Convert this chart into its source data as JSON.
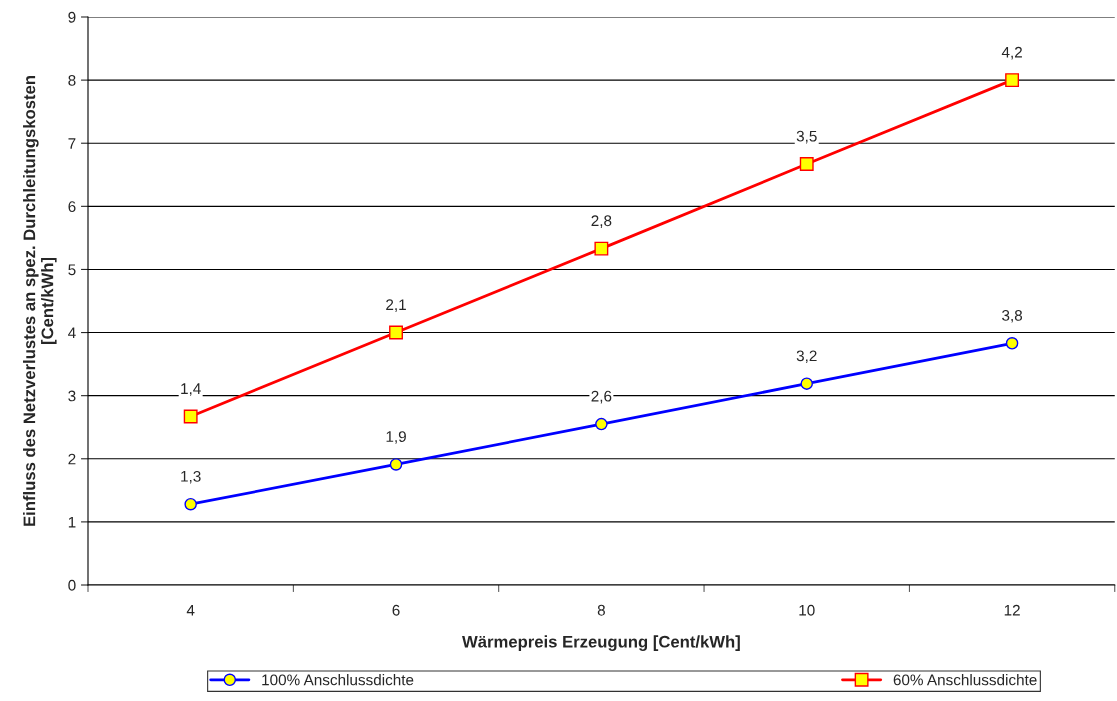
{
  "chart_data": {
    "type": "line",
    "xlabel": "Wärmepreis Erzeugung [Cent/kWh]",
    "ylabel": "Einfluss des Netzverlustes an spez. Durchleitungskosten\n[Cent/kWh]",
    "categories": [
      "4",
      "6",
      "8",
      "10",
      "12"
    ],
    "series": [
      {
        "name": "100% Anschlussdichte",
        "color": "#0000ff",
        "marker": "circle",
        "values": [
          1.28,
          1.91,
          2.55,
          3.19,
          3.83
        ],
        "value_labels": [
          "1,3",
          "1,9",
          "2,6",
          "3,2",
          "3,8"
        ]
      },
      {
        "name": "60% Anschlussdichte",
        "color": "#ff0000",
        "marker": "square",
        "values": [
          2.67,
          4.0,
          5.33,
          6.67,
          8.0
        ]
      }
    ],
    "annotations": [
      {
        "text": "1,4",
        "x": "4",
        "y": 2.67
      },
      {
        "text": "2,1",
        "x": "6",
        "y": 4.0
      },
      {
        "text": "2,8",
        "x": "8",
        "y": 5.33
      },
      {
        "text": "3,5",
        "x": "10",
        "y": 6.67
      },
      {
        "text": "4,2",
        "x": "12",
        "y": 8.0
      }
    ],
    "ylim": [
      0,
      9
    ],
    "yticks": [
      0,
      1,
      2,
      3,
      4,
      5,
      6,
      7,
      8,
      9
    ],
    "grid": "y",
    "legend": "bottom",
    "line_style": "solid"
  }
}
